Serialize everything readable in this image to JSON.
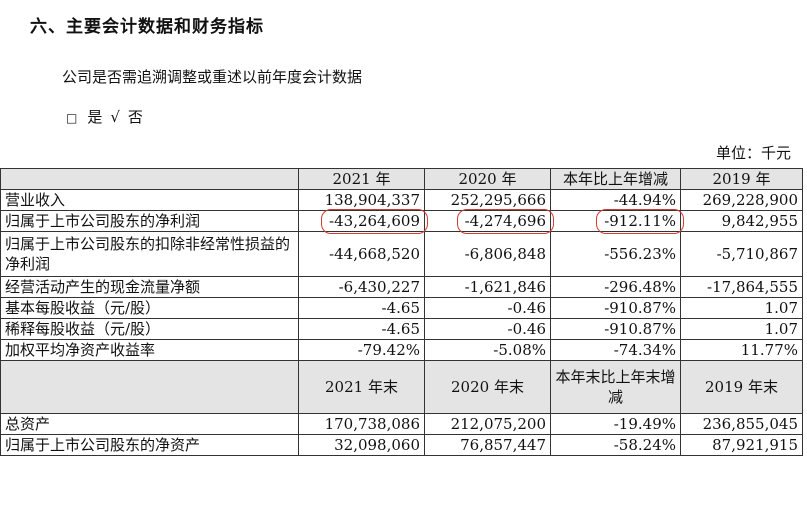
{
  "section_title": "六、主要会计数据和财务指标",
  "question": "公司是否需追溯调整或重述以前年度会计数据",
  "choice": {
    "box": "□",
    "yes": "是",
    "check": "√",
    "no": "否"
  },
  "unit": "单位：千元",
  "table1": {
    "headers": [
      "2021 年",
      "2020 年",
      "本年比上年增减",
      "2019 年"
    ],
    "rows": [
      {
        "label": "营业收入",
        "values": [
          "138,904,337",
          "252,295,666",
          "-44.94%",
          "269,228,900"
        ]
      },
      {
        "label": "归属于上市公司股东的净利润",
        "values": [
          "-43,264,609",
          "-4,274,696",
          "-912.11%",
          "9,842,955"
        ]
      },
      {
        "label": "归属于上市公司股东的扣除非经常性损益的净利润",
        "values": [
          "-44,668,520",
          "-6,806,848",
          "-556.23%",
          "-5,710,867"
        ]
      },
      {
        "label": "经营活动产生的现金流量净额",
        "values": [
          "-6,430,227",
          "-1,621,846",
          "-296.48%",
          "-17,864,555"
        ]
      },
      {
        "label": "基本每股收益（元/股）",
        "values": [
          "-4.65",
          "-0.46",
          "-910.87%",
          "1.07"
        ]
      },
      {
        "label": "稀释每股收益（元/股）",
        "values": [
          "-4.65",
          "-0.46",
          "-910.87%",
          "1.07"
        ]
      },
      {
        "label": "加权平均净资产收益率",
        "values": [
          "-79.42%",
          "-5.08%",
          "-74.34%",
          "11.77%"
        ]
      }
    ]
  },
  "table2": {
    "headers": [
      "2021 年末",
      "2020 年末",
      "本年末比上年末增减",
      "2019 年末"
    ],
    "rows": [
      {
        "label": "总资产",
        "values": [
          "170,738,086",
          "212,075,200",
          "-19.49%",
          "236,855,045"
        ]
      },
      {
        "label": "归属于上市公司股东的净资产",
        "values": [
          "32,098,060",
          "76,857,447",
          "-58.24%",
          "87,921,915"
        ]
      }
    ]
  }
}
